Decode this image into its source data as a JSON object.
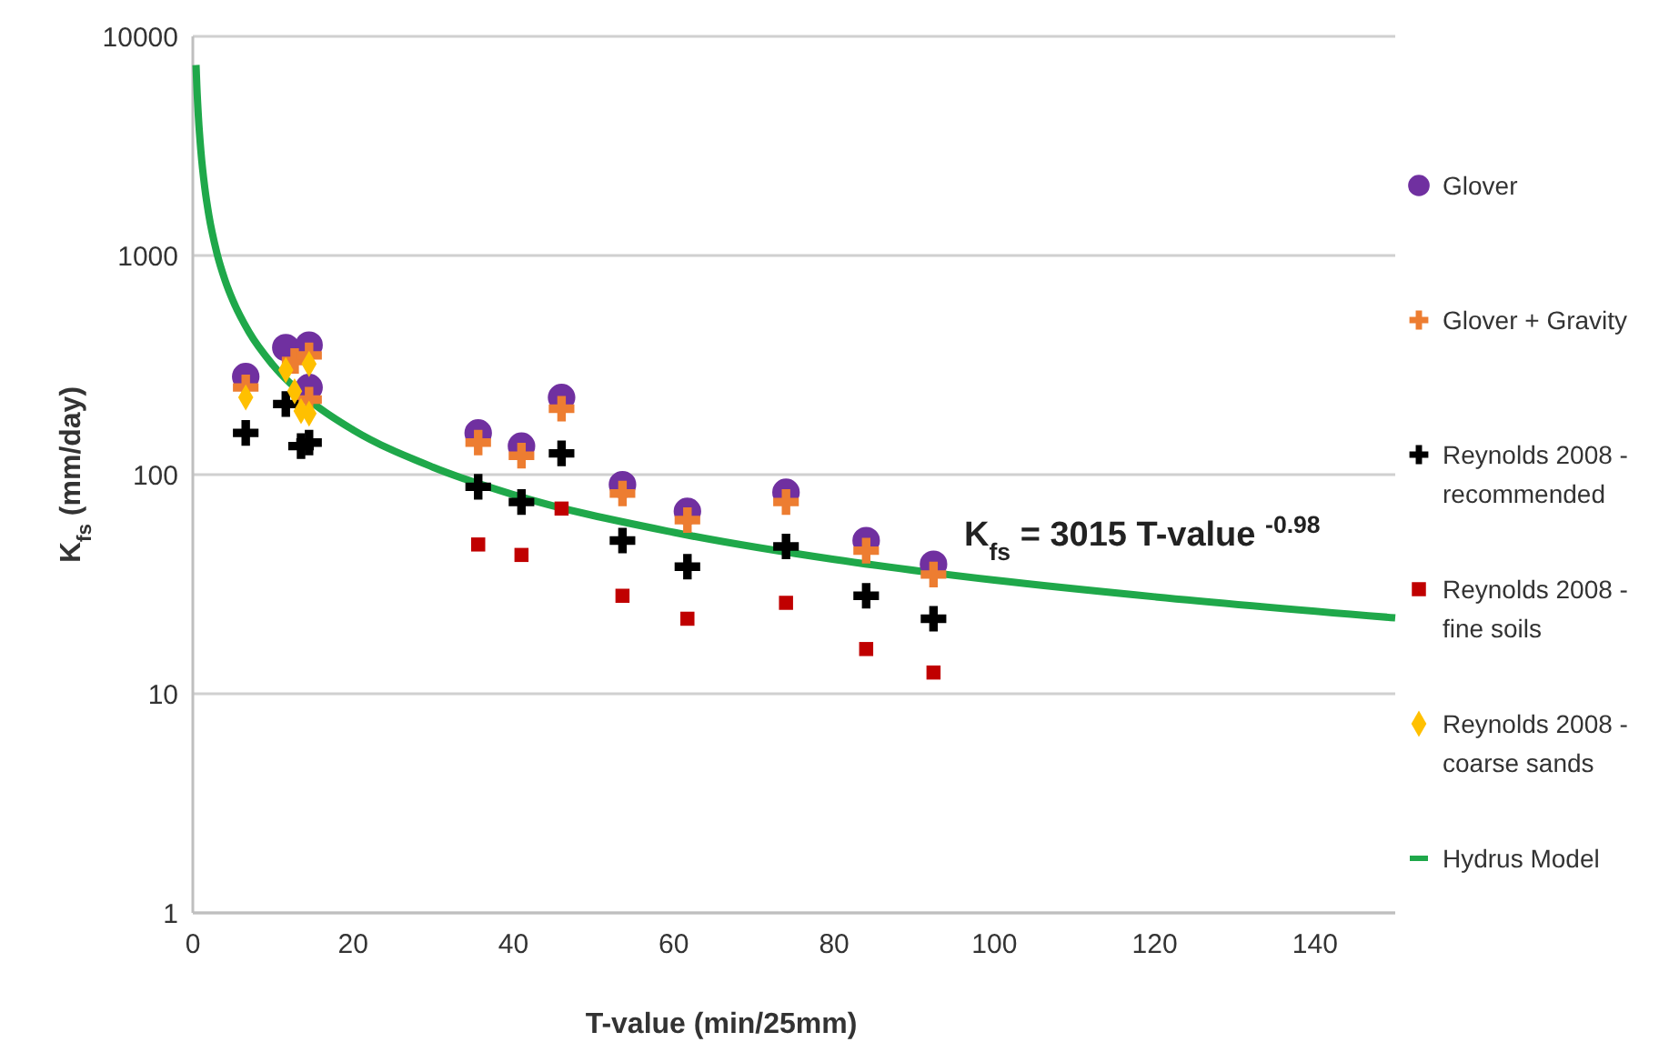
{
  "chart_data": {
    "type": "scatter",
    "xlabel": "T-value (min/25mm)",
    "ylabel": "K$_{fs}$ (mm/day)",
    "log": "y",
    "grid": "y",
    "legend": "right",
    "xlim": [
      0,
      150
    ],
    "xticks": [
      0,
      20,
      40,
      60,
      80,
      100,
      120,
      140
    ],
    "ylim": [
      1,
      10000
    ],
    "yticks": [
      1,
      10,
      100,
      1000,
      10000
    ],
    "annotations": [
      "K$_{fs}$ = 3015 T-value $^{-0.98}$"
    ],
    "series": [
      {
        "name": "Glover",
        "color": "#7030a0",
        "marker": "circle",
        "x": [
          6.6,
          11.6,
          14.5,
          14.5,
          35.6,
          41,
          46,
          53.6,
          61.7,
          74,
          84,
          92.4
        ],
        "values": [
          280,
          380,
          390,
          250,
          155,
          135,
          225,
          90,
          68,
          83,
          50,
          39
        ]
      },
      {
        "name": "Glover + Gravity",
        "color": "#ed7d31",
        "marker": "cross",
        "x": [
          6.6,
          11.6,
          12.7,
          14.5,
          14.5,
          35.6,
          41,
          46,
          53.6,
          61.7,
          74,
          84,
          92.4
        ],
        "values": [
          250,
          null,
          330,
          350,
          220,
          140,
          122,
          200,
          82,
          62,
          75,
          45,
          35
        ]
      },
      {
        "name": "Reynolds 2008 - recommended",
        "color": "#000000",
        "marker": "cross",
        "x": [
          6.6,
          11.6,
          12.7,
          13.5,
          14.5,
          35.6,
          41,
          46,
          53.6,
          61.7,
          74,
          84,
          92.4
        ],
        "values": [
          155,
          210,
          null,
          135,
          140,
          88,
          75,
          125,
          50,
          38,
          47,
          28,
          22
        ]
      },
      {
        "name": "Reynolds 2008 - fine soils",
        "color": "#c00000",
        "marker": "square",
        "x": [
          35.6,
          41,
          46,
          53.6,
          61.7,
          74,
          84,
          92.4
        ],
        "values": [
          48,
          43,
          70,
          28,
          22,
          26,
          16,
          12.5
        ]
      },
      {
        "name": "Reynolds 2008 - coarse sands",
        "color": "#ffc000",
        "marker": "diamond",
        "x": [
          6.6,
          11.6,
          12.7,
          13.5,
          14.5,
          14.5
        ],
        "values": [
          225,
          300,
          240,
          195,
          320,
          190
        ]
      },
      {
        "name": "Hydrus Model",
        "color": "#1fa84a",
        "type": "line",
        "marker": "none",
        "x": [
          0.4,
          0.5,
          0.7,
          1,
          1.5,
          2,
          3,
          4,
          5,
          7,
          10,
          15,
          20,
          30,
          40,
          60,
          80,
          100,
          120,
          150
        ],
        "values": [
          7400,
          5946,
          4276,
          3015,
          2026,
          1529,
          1027,
          775,
          623,
          448,
          316,
          212,
          160,
          108,
          81,
          54.5,
          41,
          33,
          27.7,
          22.2
        ]
      }
    ]
  }
}
